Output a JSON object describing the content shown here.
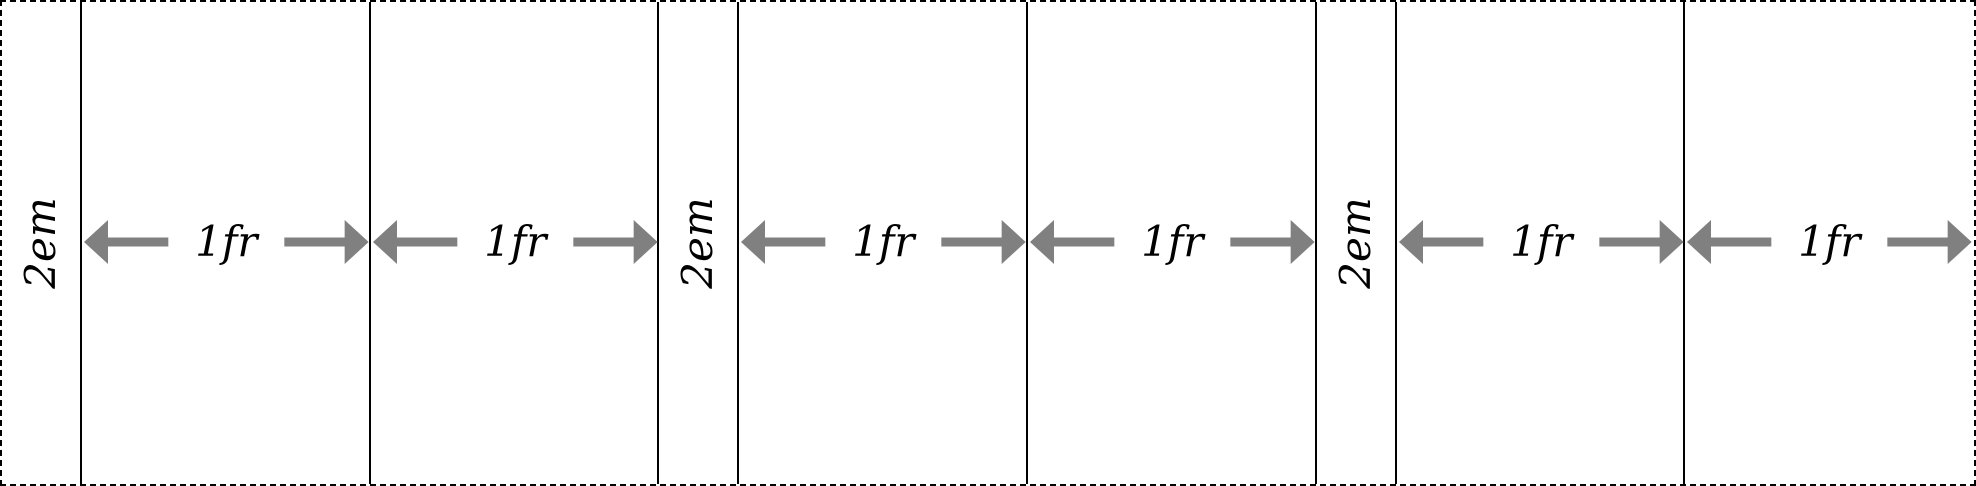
{
  "grid_template": [
    {
      "kind": "em",
      "label": "2em"
    },
    {
      "kind": "fr",
      "label": "1fr"
    },
    {
      "kind": "fr",
      "label": "1fr"
    },
    {
      "kind": "em",
      "label": "2em"
    },
    {
      "kind": "fr",
      "label": "1fr"
    },
    {
      "kind": "fr",
      "label": "1fr"
    },
    {
      "kind": "em",
      "label": "2em"
    },
    {
      "kind": "fr",
      "label": "1fr"
    },
    {
      "kind": "fr",
      "label": "1fr"
    }
  ],
  "colors": {
    "line": "#000000",
    "arrow": "#808080",
    "background": "#ffffff"
  }
}
